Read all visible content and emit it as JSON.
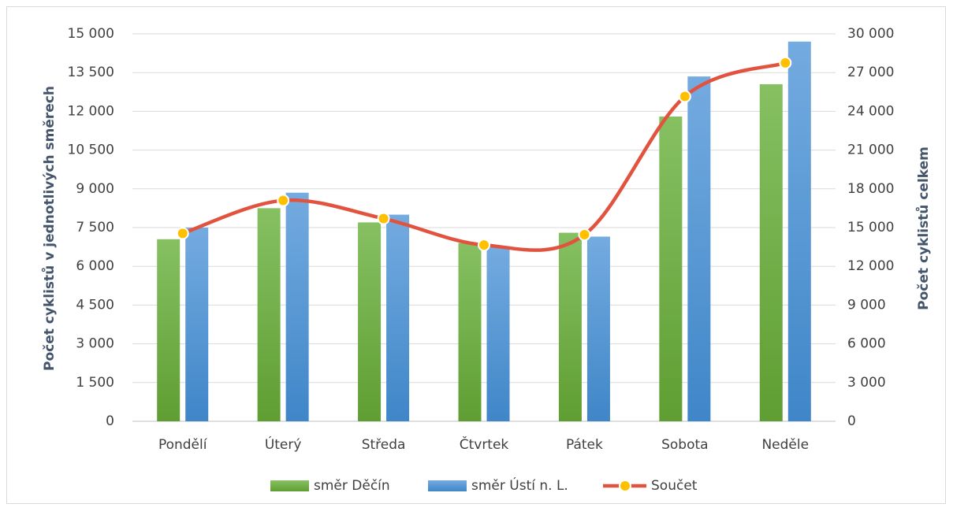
{
  "chart_data": {
    "type": "bar",
    "y_label": "Počet cyklistů v jednotlivých směrech",
    "y2_label": "Počet cyklistů celkem",
    "categories": [
      "Pondělí",
      "Úterý",
      "Středa",
      "Čtvrtek",
      "Pátek",
      "Sobota",
      "Neděle"
    ],
    "series": [
      {
        "name": "směr Děčín",
        "color": "#70ad47",
        "values": [
          7050,
          8250,
          7700,
          6900,
          7300,
          11800,
          13050
        ]
      },
      {
        "name": "směr Ústí n. L.",
        "color": "#5b9bd5",
        "values": [
          7500,
          8850,
          8000,
          6750,
          7150,
          13350,
          14700
        ]
      },
      {
        "name": "Součet",
        "type": "line",
        "axis": "y2",
        "color": "#e2533f",
        "marker_color": "#ffc000",
        "smooth": true,
        "values": [
          14550,
          17100,
          15700,
          13650,
          14450,
          25150,
          27750
        ]
      }
    ],
    "ylim": [
      0,
      15000
    ],
    "yticks": [
      0,
      {
        "value": 1500,
        "label": "1 500"
      },
      {
        "value": 3000,
        "label": "3 000"
      },
      {
        "value": 4500,
        "label": "4 500"
      },
      {
        "value": 6000,
        "label": "6 000"
      },
      {
        "value": 7500,
        "label": "7 500"
      },
      {
        "value": 9000,
        "label": "9 000"
      },
      {
        "value": 10500,
        "label": "10 500"
      },
      {
        "value": 12000,
        "label": "12 000"
      },
      {
        "value": 13500,
        "label": "13 500"
      },
      {
        "value": 15000,
        "label": "15 000"
      }
    ],
    "y2lim": [
      0,
      30000
    ],
    "y2ticks": [
      0,
      {
        "value": 3000,
        "label": "3 000"
      },
      {
        "value": 6000,
        "label": "6 000"
      },
      {
        "value": 9000,
        "label": "9 000"
      },
      {
        "value": 12000,
        "label": "12 000"
      },
      {
        "value": 15000,
        "label": "15 000"
      },
      {
        "value": 18000,
        "label": "18 000"
      },
      {
        "value": 21000,
        "label": "21 000"
      },
      {
        "value": 24000,
        "label": "24 000"
      },
      {
        "value": 27000,
        "label": "27 000"
      },
      {
        "value": 30000,
        "label": "30 000"
      }
    ],
    "grid": true,
    "legend": "bottom"
  }
}
